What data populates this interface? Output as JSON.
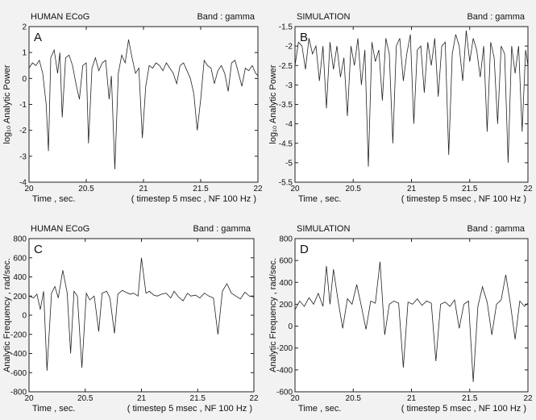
{
  "chart_data": [
    {
      "type": "line",
      "panel_letter": "A",
      "title_left": "HUMAN ECoG",
      "title_right": "Band : gamma",
      "ylabel": "log₁₀ Analytic Power",
      "xlabel": "Time ,  sec.",
      "note": "( timestep  5 msec ,  NF 100 Hz )",
      "xlim": [
        20,
        22
      ],
      "ylim": [
        -4,
        2
      ],
      "xticks": [
        20,
        20.5,
        21,
        21.5,
        22
      ],
      "yticks": [
        -4,
        -3,
        -2,
        -1,
        0,
        1,
        2
      ],
      "series": [
        {
          "x": [
            20.0,
            20.03,
            20.06,
            20.09,
            20.12,
            20.15,
            20.17,
            20.19,
            20.22,
            20.25,
            20.27,
            20.29,
            20.32,
            20.35,
            20.38,
            20.41,
            20.44,
            20.47,
            20.5,
            20.52,
            20.55,
            20.58,
            20.61,
            20.64,
            20.67,
            20.7,
            20.72,
            20.75,
            20.78,
            20.81,
            20.84,
            20.87,
            20.9,
            20.93,
            20.96,
            20.99,
            21.02,
            21.05,
            21.08,
            21.11,
            21.14,
            21.17,
            21.2,
            21.23,
            21.26,
            21.29,
            21.32,
            21.35,
            21.38,
            21.41,
            21.44,
            21.47,
            21.5,
            21.53,
            21.56,
            21.59,
            21.62,
            21.65,
            21.68,
            21.71,
            21.74,
            21.77,
            21.8,
            21.83,
            21.86,
            21.89,
            21.92,
            21.95,
            21.98,
            22.0
          ],
          "y": [
            0.4,
            0.6,
            0.5,
            0.7,
            0.2,
            -1.0,
            -2.8,
            0.8,
            1.1,
            0.2,
            1.0,
            -1.5,
            0.8,
            0.9,
            0.5,
            -0.2,
            -0.8,
            0.5,
            0.6,
            -2.5,
            0.4,
            0.8,
            0.3,
            0.6,
            0.7,
            -0.8,
            0.1,
            -3.5,
            0.2,
            0.9,
            0.6,
            1.5,
            0.8,
            0.2,
            0.4,
            -2.3,
            -0.3,
            0.5,
            0.4,
            0.6,
            0.5,
            0.3,
            0.6,
            0.4,
            0.2,
            -0.2,
            0.5,
            0.6,
            0.3,
            0.0,
            -0.6,
            -2.0,
            -0.8,
            0.7,
            0.5,
            0.4,
            -0.2,
            0.3,
            0.5,
            0.2,
            -0.5,
            0.6,
            0.7,
            0.2,
            -0.3,
            0.4,
            0.3,
            0.5,
            0.2,
            0.1
          ]
        }
      ]
    },
    {
      "type": "line",
      "panel_letter": "B",
      "title_left": "SIMULATION",
      "title_right": "Band : gamma",
      "ylabel": "log₁₀ Analytic Power",
      "xlabel": "Time ,  sec.",
      "note": "( timestep  5 msec ,  NF 100 Hz )",
      "xlim": [
        20,
        22
      ],
      "ylim": [
        -5.5,
        -1.5
      ],
      "xticks": [
        20,
        20.5,
        21,
        21.5,
        22
      ],
      "yticks": [
        -5.5,
        -5,
        -4.5,
        -4,
        -3.5,
        -3,
        -2.5,
        -2,
        -1.5
      ],
      "series": [
        {
          "x": [
            20.0,
            20.03,
            20.06,
            20.09,
            20.12,
            20.15,
            20.18,
            20.21,
            20.24,
            20.27,
            20.3,
            20.33,
            20.36,
            20.39,
            20.42,
            20.45,
            20.48,
            20.51,
            20.54,
            20.57,
            20.6,
            20.63,
            20.66,
            20.69,
            20.72,
            20.75,
            20.78,
            20.81,
            20.84,
            20.87,
            20.9,
            20.93,
            20.96,
            20.99,
            21.02,
            21.05,
            21.08,
            21.11,
            21.14,
            21.17,
            21.2,
            21.23,
            21.26,
            21.29,
            21.32,
            21.35,
            21.38,
            21.41,
            21.44,
            21.47,
            21.5,
            21.53,
            21.56,
            21.59,
            21.62,
            21.65,
            21.68,
            21.71,
            21.74,
            21.77,
            21.8,
            21.83,
            21.86,
            21.89,
            21.92,
            21.95,
            21.98,
            22.0
          ],
          "y": [
            -2.5,
            -1.9,
            -2.0,
            -2.6,
            -1.8,
            -2.2,
            -2.0,
            -2.9,
            -2.0,
            -3.6,
            -1.9,
            -2.6,
            -2.0,
            -2.8,
            -2.3,
            -3.8,
            -2.0,
            -2.5,
            -1.8,
            -3.0,
            -2.1,
            -5.1,
            -1.9,
            -2.4,
            -2.1,
            -3.4,
            -1.8,
            -2.2,
            -4.5,
            -2.0,
            -1.8,
            -2.9,
            -2.2,
            -1.7,
            -4.0,
            -2.1,
            -2.0,
            -3.2,
            -1.9,
            -2.5,
            -1.8,
            -3.3,
            -2.0,
            -1.9,
            -4.8,
            -2.2,
            -1.7,
            -2.0,
            -2.9,
            -1.6,
            -2.4,
            -1.8,
            -2.1,
            -2.8,
            -2.0,
            -4.2,
            -1.9,
            -2.3,
            -4.0,
            -2.0,
            -2.2,
            -5.0,
            -2.0,
            -2.7,
            -2.0,
            -4.2,
            -2.1,
            -2.5
          ]
        }
      ]
    },
    {
      "type": "line",
      "panel_letter": "C",
      "title_left": "HUMAN ECoG",
      "title_right": "Band : gamma",
      "ylabel": "Analytic Frequency ,  rad/sec.",
      "xlabel": "Time ,  sec.",
      "note": "( timestep  5 msec ,  NF 100 Hz )",
      "xlim": [
        20,
        22
      ],
      "ylim": [
        -800,
        800
      ],
      "xticks": [
        20,
        20.5,
        21,
        21.5,
        22
      ],
      "yticks": [
        -800,
        -600,
        -400,
        -200,
        0,
        200,
        400,
        600,
        800
      ],
      "series": [
        {
          "x": [
            20.0,
            20.04,
            20.07,
            20.1,
            20.13,
            20.16,
            20.2,
            20.23,
            20.26,
            20.3,
            20.34,
            20.37,
            20.4,
            20.43,
            20.47,
            20.51,
            20.54,
            20.58,
            20.62,
            20.65,
            20.69,
            20.72,
            20.76,
            20.79,
            20.83,
            20.86,
            20.9,
            20.93,
            20.97,
            21.0,
            21.04,
            21.07,
            21.11,
            21.14,
            21.18,
            21.22,
            21.26,
            21.29,
            21.33,
            21.37,
            21.41,
            21.44,
            21.48,
            21.52,
            21.56,
            21.6,
            21.64,
            21.68,
            21.72,
            21.76,
            21.8,
            21.84,
            21.88,
            21.92,
            21.96,
            22.0
          ],
          "y": [
            200,
            180,
            220,
            60,
            250,
            -580,
            230,
            300,
            180,
            470,
            230,
            -400,
            250,
            200,
            -550,
            230,
            160,
            200,
            -170,
            230,
            250,
            180,
            -190,
            220,
            260,
            240,
            220,
            230,
            200,
            600,
            230,
            250,
            210,
            200,
            220,
            230,
            180,
            250,
            190,
            150,
            230,
            200,
            210,
            180,
            230,
            200,
            180,
            -200,
            250,
            330,
            230,
            200,
            170,
            240,
            200,
            190
          ]
        }
      ]
    },
    {
      "type": "line",
      "panel_letter": "D",
      "title_left": "SIMULATION",
      "title_right": "Band : gamma",
      "ylabel": "Analytic Frequency ,  rad/sec.",
      "xlabel": "Time ,  sec.",
      "note": "( timestep  5 msec ,  NF 100 Hz )",
      "xlim": [
        20,
        22
      ],
      "ylim": [
        -600,
        800
      ],
      "xticks": [
        20,
        20.5,
        21,
        21.5,
        22
      ],
      "yticks": [
        -600,
        -400,
        -200,
        0,
        200,
        400,
        600,
        800
      ],
      "series": [
        {
          "x": [
            20.0,
            20.04,
            20.08,
            20.12,
            20.16,
            20.2,
            20.24,
            20.27,
            20.3,
            20.33,
            20.37,
            20.41,
            20.45,
            20.49,
            20.53,
            20.57,
            20.61,
            20.65,
            20.69,
            20.73,
            20.77,
            20.81,
            20.85,
            20.89,
            20.93,
            20.97,
            21.01,
            21.05,
            21.09,
            21.13,
            21.17,
            21.21,
            21.25,
            21.29,
            21.33,
            21.37,
            21.41,
            21.45,
            21.49,
            21.53,
            21.57,
            21.61,
            21.65,
            21.69,
            21.73,
            21.77,
            21.81,
            21.85,
            21.89,
            21.93,
            21.97,
            22.0
          ],
          "y": [
            150,
            230,
            180,
            260,
            200,
            300,
            180,
            550,
            200,
            520,
            230,
            -20,
            250,
            200,
            380,
            180,
            -30,
            230,
            210,
            590,
            -80,
            200,
            230,
            210,
            -380,
            220,
            200,
            250,
            190,
            230,
            210,
            -320,
            200,
            220,
            180,
            240,
            -20,
            200,
            230,
            -510,
            180,
            360,
            220,
            -80,
            200,
            240,
            470,
            200,
            -120,
            230,
            180,
            210
          ]
        }
      ]
    }
  ]
}
